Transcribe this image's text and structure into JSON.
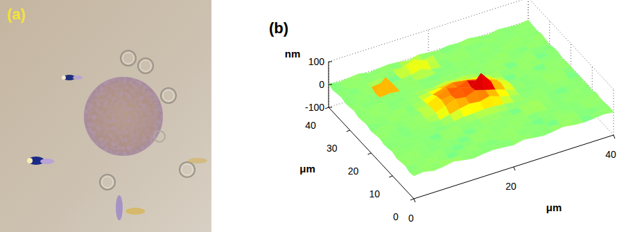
{
  "panel_a": {
    "label": "(a)"
  },
  "chart_data": {
    "type": "surface",
    "title": "(b)",
    "x_label": "μm",
    "y_label": "μm",
    "z_label": "nm",
    "xlim": [
      0,
      40
    ],
    "ylim": [
      0,
      40
    ],
    "zlim": [
      -100,
      100
    ],
    "xticks": [
      0,
      20,
      40
    ],
    "yticks": [
      0,
      10,
      20,
      30,
      40
    ],
    "zticks": [
      -100,
      0,
      100
    ],
    "grid": true,
    "x": [
      0,
      2,
      4,
      6,
      8,
      10,
      12,
      14,
      16,
      18,
      20,
      22,
      24,
      26,
      28,
      30,
      32,
      34,
      36,
      38,
      40
    ],
    "y": [
      0,
      2,
      4,
      6,
      8,
      10,
      12,
      14,
      16,
      18,
      20,
      22,
      24,
      26,
      28,
      30,
      32,
      34,
      36,
      38,
      40
    ],
    "z": [
      [
        0,
        5,
        -5,
        0,
        8,
        0,
        -6,
        0,
        4,
        0,
        -4,
        6,
        0,
        -5,
        0,
        7,
        0,
        -3,
        0,
        5,
        0
      ],
      [
        -5,
        0,
        6,
        0,
        -4,
        0,
        5,
        0,
        -6,
        3,
        0,
        0,
        -5,
        4,
        0,
        -4,
        6,
        0,
        -6,
        0,
        4
      ],
      [
        4,
        -3,
        0,
        5,
        0,
        -6,
        0,
        4,
        0,
        -5,
        6,
        0,
        4,
        0,
        -6,
        0,
        5,
        0,
        3,
        -4,
        0
      ],
      [
        0,
        6,
        -4,
        0,
        3,
        0,
        -5,
        0,
        6,
        0,
        -3,
        5,
        0,
        -6,
        0,
        4,
        0,
        -5,
        0,
        6,
        -3
      ],
      [
        -4,
        0,
        5,
        -6,
        0,
        4,
        0,
        -3,
        0,
        5,
        0,
        -4,
        6,
        0,
        3,
        0,
        -5,
        4,
        0,
        -3,
        5
      ],
      [
        5,
        0,
        -3,
        4,
        0,
        -5,
        6,
        0,
        -4,
        0,
        5,
        0,
        -3,
        0,
        8,
        5,
        0,
        -4,
        5,
        0,
        -6
      ],
      [
        0,
        -5,
        4,
        0,
        -6,
        0,
        3,
        5,
        0,
        4,
        6,
        5,
        0,
        -4,
        6,
        0,
        3,
        0,
        -5,
        4,
        0
      ],
      [
        -3,
        4,
        0,
        -5,
        5,
        0,
        -4,
        0,
        6,
        8,
        12,
        10,
        6,
        0,
        -3,
        5,
        0,
        -4,
        0,
        4,
        -3
      ],
      [
        4,
        0,
        -6,
        3,
        0,
        5,
        0,
        10,
        22,
        30,
        25,
        35,
        20,
        8,
        0,
        -5,
        4,
        0,
        5,
        -3,
        0
      ],
      [
        0,
        5,
        0,
        -4,
        6,
        0,
        12,
        28,
        45,
        38,
        55,
        42,
        30,
        15,
        0,
        4,
        -5,
        0,
        6,
        0,
        -4
      ],
      [
        -5,
        0,
        4,
        0,
        -3,
        5,
        15,
        35,
        40,
        62,
        48,
        95,
        45,
        25,
        5,
        0,
        -4,
        5,
        0,
        3,
        0
      ],
      [
        3,
        -4,
        0,
        6,
        0,
        -5,
        10,
        30,
        52,
        40,
        58,
        45,
        35,
        18,
        0,
        -5,
        4,
        0,
        -3,
        5,
        0
      ],
      [
        0,
        5,
        -3,
        0,
        4,
        0,
        6,
        18,
        30,
        42,
        35,
        28,
        20,
        8,
        -4,
        0,
        5,
        -3,
        0,
        4,
        -5
      ],
      [
        -4,
        0,
        6,
        -5,
        0,
        4,
        0,
        8,
        12,
        18,
        15,
        10,
        6,
        0,
        5,
        -4,
        0,
        6,
        -3,
        0,
        4
      ],
      [
        5,
        -3,
        0,
        4,
        -6,
        0,
        5,
        0,
        -4,
        6,
        0,
        5,
        0,
        -4,
        6,
        0,
        -4,
        5,
        0,
        -5,
        3
      ],
      [
        0,
        4,
        -5,
        0,
        5,
        0,
        -4,
        4,
        0,
        -5,
        4,
        0,
        -3,
        5,
        0,
        6,
        0,
        -4,
        3,
        0,
        -6
      ],
      [
        -3,
        0,
        5,
        -4,
        55,
        0,
        6,
        0,
        -5,
        3,
        0,
        -4,
        5,
        0,
        -6,
        0,
        4,
        0,
        -5,
        6,
        0
      ],
      [
        4,
        -5,
        0,
        6,
        10,
        -3,
        0,
        5,
        15,
        0,
        -5,
        4,
        0,
        -4,
        5,
        0,
        -3,
        6,
        0,
        -4,
        5
      ],
      [
        0,
        3,
        -4,
        0,
        5,
        0,
        -6,
        20,
        25,
        18,
        0,
        -3,
        6,
        0,
        -5,
        4,
        0,
        -6,
        5,
        0,
        -3
      ],
      [
        -5,
        0,
        6,
        -3,
        0,
        5,
        0,
        -4,
        15,
        0,
        6,
        0,
        -5,
        4,
        0,
        -3,
        5,
        0,
        -4,
        5,
        0
      ],
      [
        3,
        -4,
        0,
        5,
        -5,
        0,
        4,
        0,
        -6,
        5,
        0,
        -4,
        3,
        0,
        6,
        0,
        -5,
        4,
        0,
        -3,
        4
      ]
    ]
  }
}
